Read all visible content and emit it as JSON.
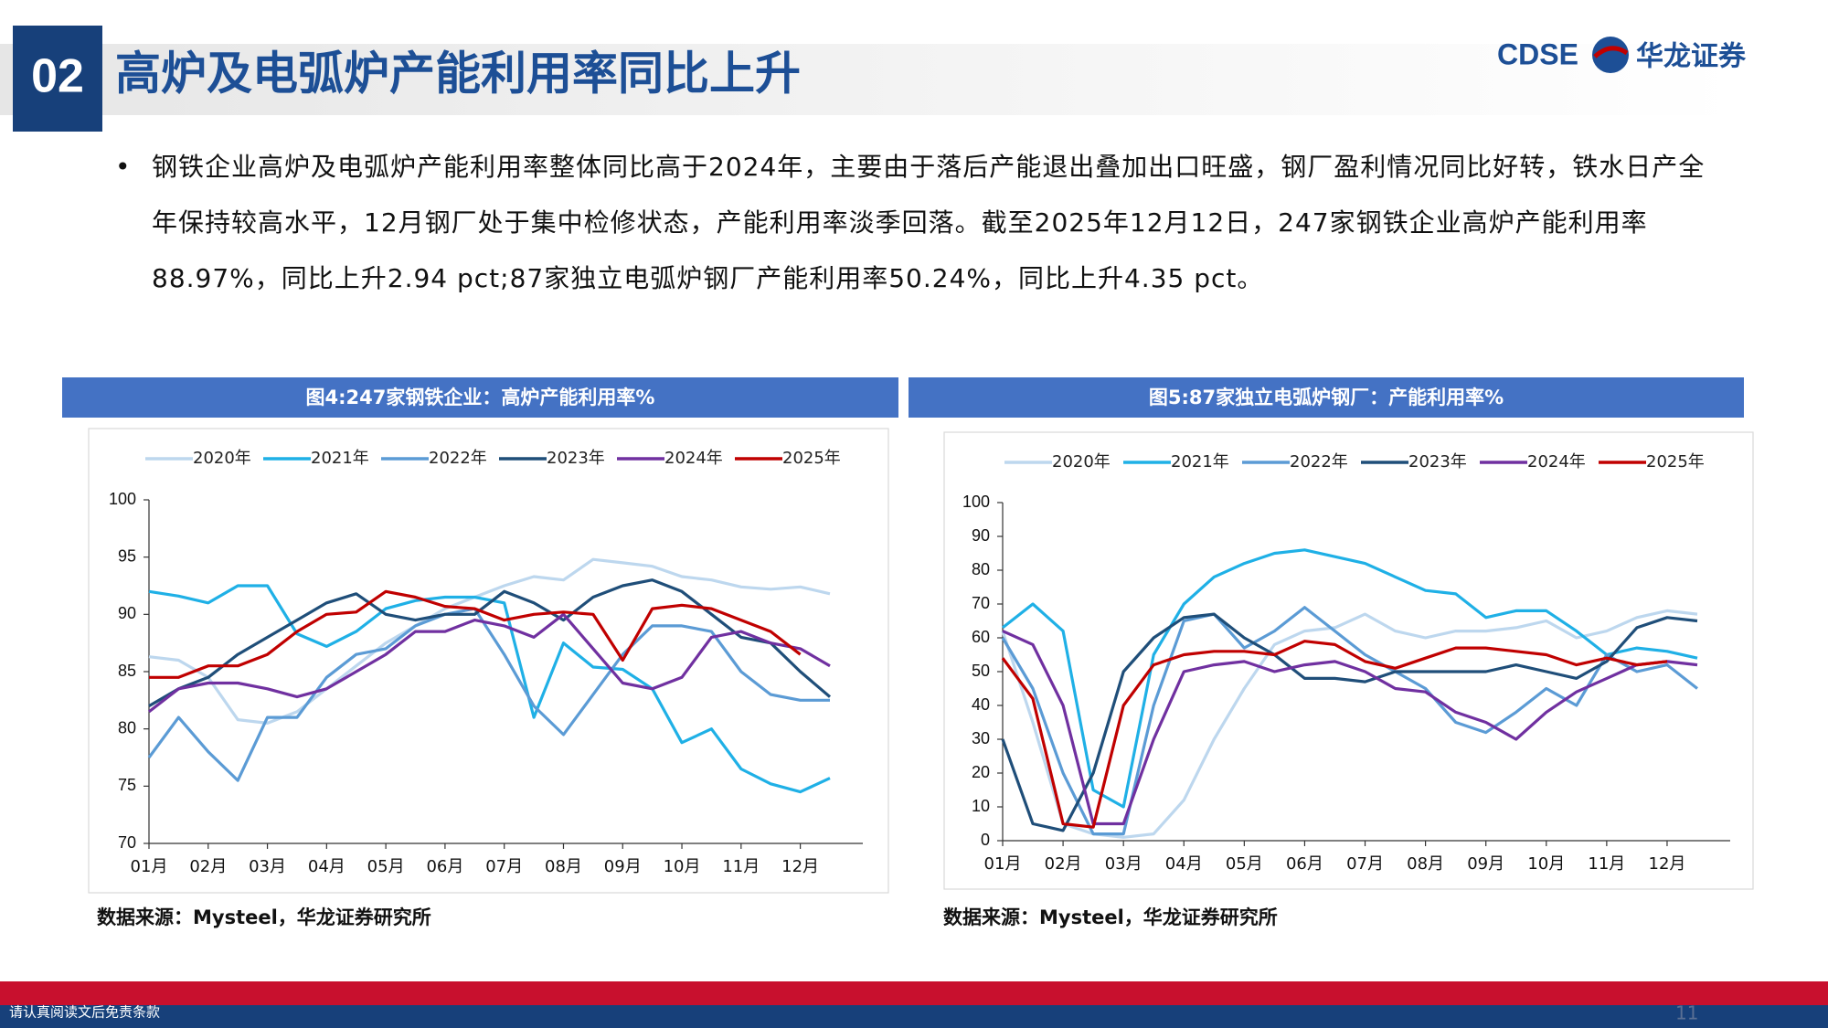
{
  "header": {
    "section": "02",
    "title": "高炉及电弧炉产能利用率同比上升",
    "logo_text": "CDSE",
    "logo_cn": "华龙证券"
  },
  "bullet": "钢铁企业高炉及电弧炉产能利用率整体同比高于2024年，主要由于落后产能退出叠加出口旺盛，钢厂盈利情况同比好转，铁水日产全年保持较高水平，12月钢厂处于集中检修状态，产能利用率淡季回落。截至2025年12月12日，247家钢铁企业高炉产能利用率88.97%，同比上升2.94 pct;87家独立电弧炉钢厂产能利用率50.24%，同比上升4.35 pct。",
  "chart_data": [
    {
      "type": "line",
      "title": "图4:247家钢铁企业：高炉产能利用率%",
      "categories": [
        "01月",
        null,
        "02月",
        null,
        "03月",
        null,
        "04月",
        null,
        "05月",
        null,
        "06月",
        null,
        "07月",
        null,
        "08月",
        null,
        "09月",
        null,
        "10月",
        null,
        "11月",
        null,
        "12月",
        null
      ],
      "series": [
        {
          "name": "2020年",
          "color": "#bdd7ee",
          "values": [
            86.3,
            86.0,
            84.5,
            80.8,
            80.5,
            81.5,
            83.5,
            85.5,
            87.5,
            89.0,
            90.5,
            91.5,
            92.5,
            93.3,
            93.0,
            94.8,
            94.5,
            94.2,
            93.3,
            93.0,
            92.4,
            92.2,
            92.4,
            91.8
          ]
        },
        {
          "name": "2021年",
          "color": "#1fb0e6",
          "values": [
            92.0,
            91.6,
            91.0,
            92.5,
            92.5,
            88.3,
            87.2,
            88.5,
            90.5,
            91.2,
            91.5,
            91.5,
            91.0,
            81.0,
            87.5,
            85.4,
            85.2,
            83.5,
            78.8,
            80.0,
            76.5,
            75.2,
            74.5,
            75.7
          ]
        },
        {
          "name": "2022年",
          "color": "#5b9bd5",
          "values": [
            77.5,
            81.0,
            78.0,
            75.5,
            81.0,
            81.0,
            84.5,
            86.5,
            87.0,
            89.0,
            90.0,
            90.5,
            86.5,
            82.0,
            79.5,
            83.0,
            86.5,
            89.0,
            89.0,
            88.5,
            85.0,
            83.0,
            82.5,
            82.5
          ]
        },
        {
          "name": "2023年",
          "color": "#1f4e79",
          "values": [
            82.0,
            83.5,
            84.5,
            86.5,
            88.0,
            89.5,
            91.0,
            91.8,
            90.0,
            89.5,
            90.0,
            90.0,
            92.0,
            91.0,
            89.5,
            91.5,
            92.5,
            93.0,
            92.0,
            90.0,
            88.0,
            87.5,
            85.0,
            82.8
          ]
        },
        {
          "name": "2024年",
          "color": "#7030a0",
          "values": [
            81.5,
            83.5,
            84.0,
            84.0,
            83.5,
            82.8,
            83.5,
            85.0,
            86.5,
            88.5,
            88.5,
            89.5,
            89.0,
            88.0,
            90.0,
            87.0,
            84.0,
            83.5,
            84.5,
            88.0,
            88.5,
            87.5,
            87.0,
            85.5
          ]
        },
        {
          "name": "2025年",
          "color": "#c00000",
          "values": [
            84.5,
            84.5,
            85.5,
            85.5,
            86.5,
            88.5,
            90.0,
            90.2,
            92.0,
            91.5,
            90.7,
            90.5,
            89.5,
            90.0,
            90.2,
            90.0,
            86.0,
            90.5,
            90.8,
            90.5,
            89.5,
            88.5,
            86.5,
            null
          ]
        }
      ],
      "ylim": [
        70,
        100
      ],
      "yticks": [
        70,
        75,
        80,
        85,
        90,
        95,
        100
      ],
      "source": "数据来源：Mysteel，华龙证券研究所"
    },
    {
      "type": "line",
      "title": "图5:87家独立电弧炉钢厂：产能利用率%",
      "categories": [
        "01月",
        null,
        "02月",
        null,
        "03月",
        null,
        "04月",
        null,
        "05月",
        null,
        "06月",
        null,
        "07月",
        null,
        "08月",
        null,
        "09月",
        null,
        "10月",
        null,
        "11月",
        null,
        "12月",
        null
      ],
      "series": [
        {
          "name": "2020年",
          "color": "#bdd7ee",
          "values": [
            62,
            35,
            5,
            2,
            1,
            2,
            12,
            30,
            45,
            58,
            62,
            63,
            67,
            62,
            60,
            62,
            62,
            63,
            65,
            60,
            62,
            66,
            68,
            67
          ]
        },
        {
          "name": "2021年",
          "color": "#1fb0e6",
          "values": [
            63,
            70,
            62,
            15,
            10,
            55,
            70,
            78,
            82,
            85,
            86,
            84,
            82,
            78,
            74,
            73,
            66,
            68,
            68,
            62,
            55,
            57,
            56,
            54
          ]
        },
        {
          "name": "2022年",
          "color": "#5b9bd5",
          "values": [
            60,
            45,
            20,
            2,
            2,
            40,
            65,
            67,
            57,
            62,
            69,
            62,
            55,
            50,
            45,
            35,
            32,
            38,
            45,
            40,
            55,
            50,
            52,
            45
          ]
        },
        {
          "name": "2023年",
          "color": "#1f4e79",
          "values": [
            30,
            5,
            3,
            20,
            50,
            60,
            66,
            67,
            60,
            55,
            48,
            48,
            47,
            50,
            50,
            50,
            50,
            52,
            50,
            48,
            53,
            63,
            66,
            65
          ]
        },
        {
          "name": "2024年",
          "color": "#7030a0",
          "values": [
            62,
            58,
            40,
            5,
            5,
            30,
            50,
            52,
            53,
            50,
            52,
            53,
            50,
            45,
            44,
            38,
            35,
            30,
            38,
            44,
            48,
            52,
            53,
            52
          ]
        },
        {
          "name": "2025年",
          "color": "#c00000",
          "values": [
            54,
            42,
            5,
            4,
            40,
            52,
            55,
            56,
            56,
            55,
            59,
            58,
            53,
            51,
            54,
            57,
            57,
            56,
            55,
            52,
            54,
            52,
            53,
            null
          ]
        }
      ],
      "ylim": [
        0,
        100
      ],
      "yticks": [
        0,
        10,
        20,
        30,
        40,
        50,
        60,
        70,
        80,
        90,
        100
      ],
      "source": "数据来源：Mysteel，华龙证券研究所"
    }
  ],
  "footer": {
    "disclaimer": "请认真阅读文后免责条款",
    "page": "11"
  }
}
